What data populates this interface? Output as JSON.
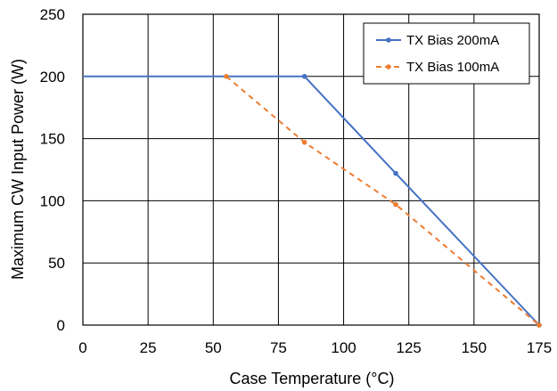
{
  "chart_data": {
    "type": "line",
    "title": "",
    "xlabel": "Case Temperature (°C)",
    "ylabel": "Maximum CW Input Power (W)",
    "xlim": [
      0,
      175
    ],
    "ylim": [
      0,
      250
    ],
    "x_ticks": [
      0,
      25,
      50,
      75,
      100,
      125,
      150,
      175
    ],
    "y_ticks": [
      0,
      50,
      100,
      150,
      200,
      250
    ],
    "grid": true,
    "legend_position": "top-right",
    "series": [
      {
        "name": "TX Bias 200mA",
        "color": "#4472C4",
        "dash": "solid",
        "points": [
          [
            0,
            200
          ],
          [
            85,
            200
          ],
          [
            120,
            122
          ],
          [
            175,
            0
          ]
        ],
        "markers": [
          [
            85,
            200
          ],
          [
            120,
            122
          ],
          [
            175,
            0
          ]
        ]
      },
      {
        "name": "TX Bias 100mA",
        "color": "#ED7D31",
        "dash": "dashed",
        "points": [
          [
            55,
            200
          ],
          [
            85,
            147
          ],
          [
            120,
            97
          ],
          [
            175,
            0
          ]
        ],
        "markers": [
          [
            55,
            200
          ],
          [
            85,
            147
          ],
          [
            120,
            97
          ],
          [
            175,
            0
          ]
        ]
      }
    ]
  }
}
